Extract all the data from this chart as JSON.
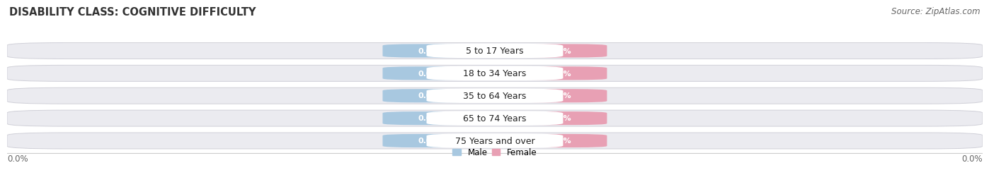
{
  "title": "DISABILITY CLASS: COGNITIVE DIFFICULTY",
  "source": "Source: ZipAtlas.com",
  "categories": [
    "5 to 17 Years",
    "18 to 34 Years",
    "35 to 64 Years",
    "65 to 74 Years",
    "75 Years and over"
  ],
  "male_values": [
    0.0,
    0.0,
    0.0,
    0.0,
    0.0
  ],
  "female_values": [
    0.0,
    0.0,
    0.0,
    0.0,
    0.0
  ],
  "male_color": "#a8c8e0",
  "female_color": "#e8a0b4",
  "bar_bg_color": "#ebebf0",
  "bar_bg_edge_color": "#d0d0d8",
  "title_fontsize": 10.5,
  "source_fontsize": 8.5,
  "value_fontsize": 8,
  "category_fontsize": 9,
  "background_color": "#ffffff",
  "axis_label_color": "#666666",
  "legend_male": "Male",
  "legend_female": "Female",
  "left_axis_label": "0.0%",
  "right_axis_label": "0.0%"
}
